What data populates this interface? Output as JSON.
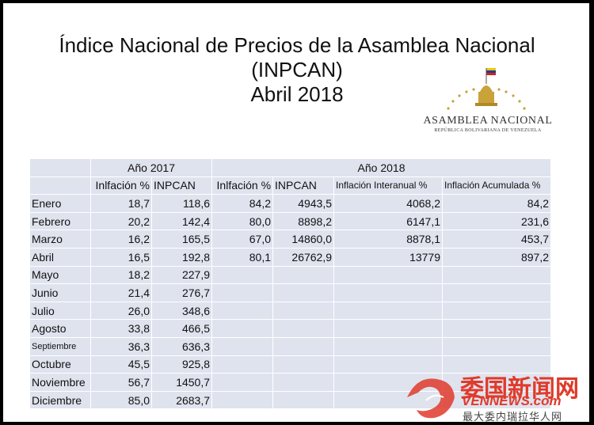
{
  "title": {
    "line1": "Índice Nacional de Precios de la Asamblea Nacional",
    "line2": "(INPCAN)",
    "line3": "Abril 2018"
  },
  "logo": {
    "name": "ASAMBLEA NACIONAL",
    "subtitle": "REPÚBLICA BOLIVARIANA DE VENEZUELA"
  },
  "table": {
    "group_headers": [
      "Año 2017",
      "Año 2018"
    ],
    "column_headers": [
      "Inlfación %",
      "INPCAN",
      "Inlfación %",
      "INPCAN",
      "Inflación Interanual %",
      "Inflación Acumulada %"
    ],
    "rows": [
      {
        "month": "Enero",
        "inf2017": "18,7",
        "inp2017": "118,6",
        "inf2018": "84,2",
        "inp2018": "4943,5",
        "interanual": "4068,2",
        "acumulada": "84,2"
      },
      {
        "month": "Febrero",
        "inf2017": "20,2",
        "inp2017": "142,4",
        "inf2018": "80,0",
        "inp2018": "8898,2",
        "interanual": "6147,1",
        "acumulada": "231,6"
      },
      {
        "month": "Marzo",
        "inf2017": "16,2",
        "inp2017": "165,5",
        "inf2018": "67,0",
        "inp2018": "14860,0",
        "interanual": "8878,1",
        "acumulada": "453,7"
      },
      {
        "month": "Abril",
        "inf2017": "16,5",
        "inp2017": "192,8",
        "inf2018": "80,1",
        "inp2018": "26762,9",
        "interanual": "13779",
        "acumulada": "897,2"
      },
      {
        "month": "Mayo",
        "inf2017": "18,2",
        "inp2017": "227,9",
        "inf2018": "",
        "inp2018": "",
        "interanual": "",
        "acumulada": ""
      },
      {
        "month": "Junio",
        "inf2017": "21,4",
        "inp2017": "276,7",
        "inf2018": "",
        "inp2018": "",
        "interanual": "",
        "acumulada": ""
      },
      {
        "month": "Julio",
        "inf2017": "26,0",
        "inp2017": "348,6",
        "inf2018": "",
        "inp2018": "",
        "interanual": "",
        "acumulada": ""
      },
      {
        "month": "Agosto",
        "inf2017": "33,8",
        "inp2017": "466,5",
        "inf2018": "",
        "inp2018": "",
        "interanual": "",
        "acumulada": ""
      },
      {
        "month": "Septiembre",
        "inf2017": "36,3",
        "inp2017": "636,3",
        "inf2018": "",
        "inp2018": "",
        "interanual": "",
        "acumulada": ""
      },
      {
        "month": "Octubre",
        "inf2017": "45,5",
        "inp2017": "925,8",
        "inf2018": "",
        "inp2018": "",
        "interanual": "",
        "acumulada": ""
      },
      {
        "month": "Noviembre",
        "inf2017": "56,7",
        "inp2017": "1450,7",
        "inf2018": "",
        "inp2018": "",
        "interanual": "",
        "acumulada": ""
      },
      {
        "month": "Diciembre",
        "inf2017": "85,0",
        "inp2017": "2683,7",
        "inf2018": "",
        "inp2018": "",
        "interanual": "",
        "acumulada": ""
      }
    ]
  },
  "watermark": {
    "cn_title": "委国新闻网",
    "url": "VENNEWS.com",
    "cn_sub": "最大委内瑞拉华人网"
  },
  "colors": {
    "table_bg": "#dfe3ee",
    "watermark_red": "#e03a2a",
    "logo_gold": "#c9a23a"
  }
}
